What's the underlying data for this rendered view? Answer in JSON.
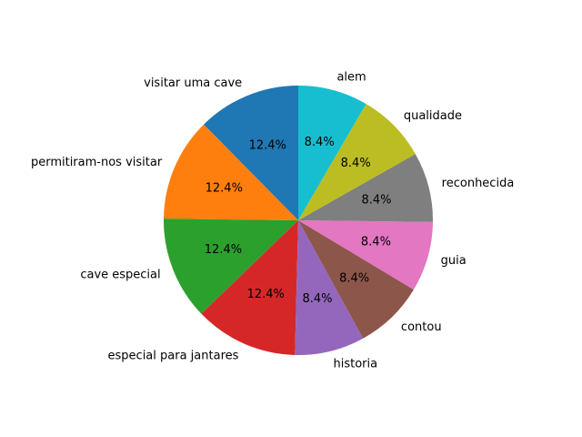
{
  "chart_data": {
    "type": "pie",
    "start_angle_deg": 90,
    "direction": "counterclockwise",
    "slices": [
      {
        "label": "visitar uma cave",
        "value": 12.4,
        "pct_label": "12.4%",
        "color": "#1f77b4"
      },
      {
        "label": "permitiram-nos visitar",
        "value": 12.4,
        "pct_label": "12.4%",
        "color": "#ff7f0e"
      },
      {
        "label": "cave especial",
        "value": 12.4,
        "pct_label": "12.4%",
        "color": "#2ca02c"
      },
      {
        "label": "especial para jantares",
        "value": 12.4,
        "pct_label": "12.4%",
        "color": "#d62728"
      },
      {
        "label": "historia",
        "value": 8.4,
        "pct_label": "8.4%",
        "color": "#9467bd"
      },
      {
        "label": "contou",
        "value": 8.4,
        "pct_label": "8.4%",
        "color": "#8c564b"
      },
      {
        "label": "guia",
        "value": 8.4,
        "pct_label": "8.4%",
        "color": "#e377c2"
      },
      {
        "label": "reconhecida",
        "value": 8.4,
        "pct_label": "8.4%",
        "color": "#7f7f7f"
      },
      {
        "label": "qualidade",
        "value": 8.4,
        "pct_label": "8.4%",
        "color": "#bcbd22"
      },
      {
        "label": "alem",
        "value": 8.4,
        "pct_label": "8.4%",
        "color": "#17becf"
      }
    ]
  }
}
